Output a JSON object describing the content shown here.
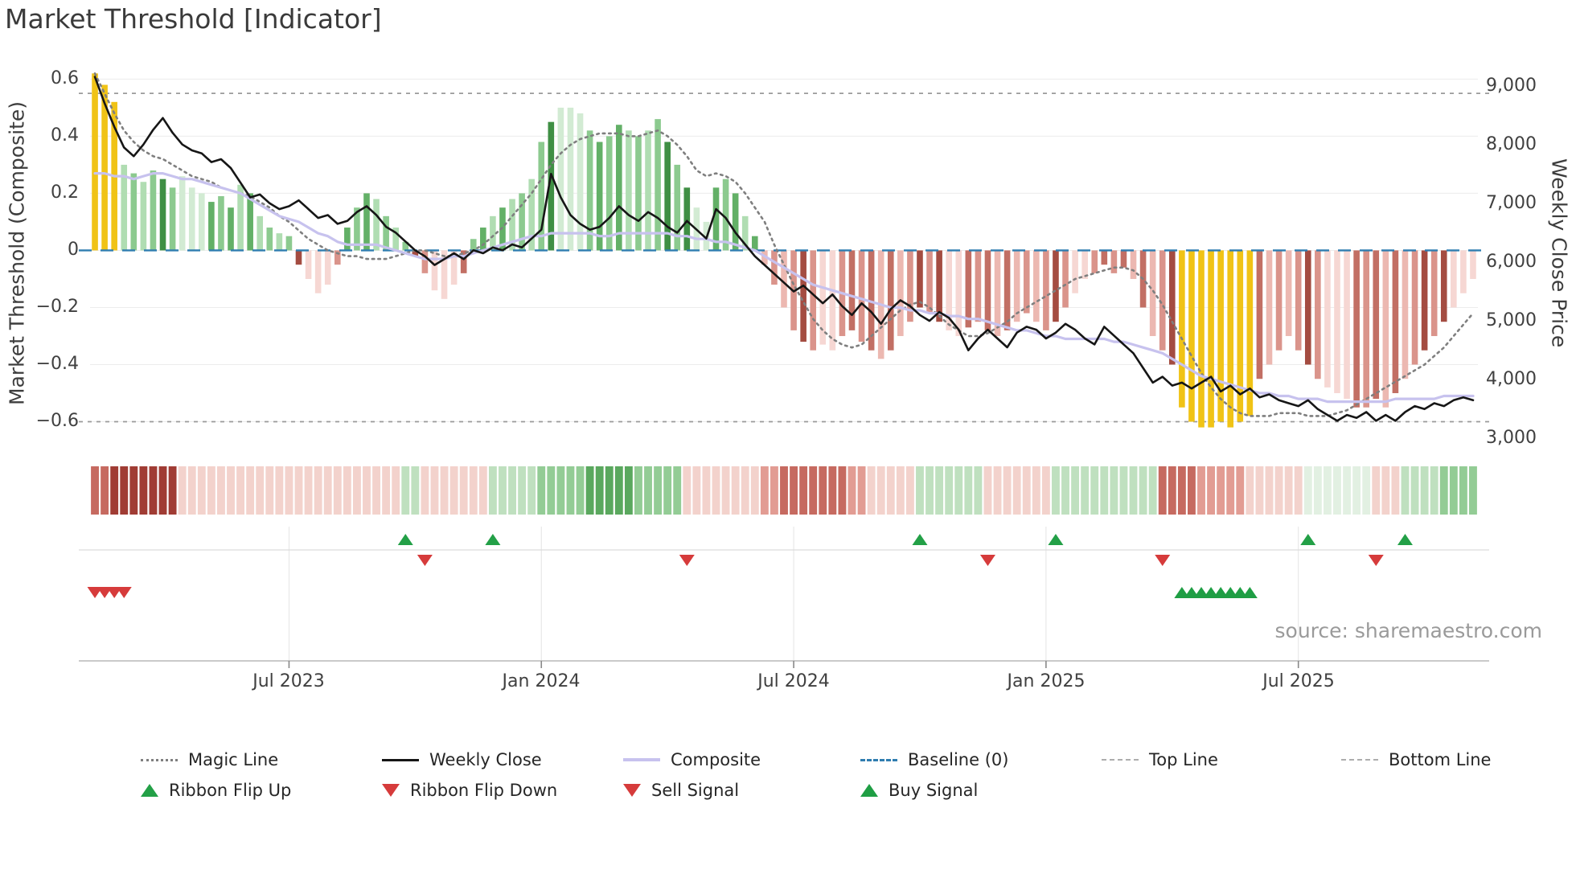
{
  "title": "Market Threshold [Indicator]",
  "source": "source: sharemaestro.com",
  "colors": {
    "highlight": "#f0c316",
    "bar_greens": [
      "#d2ebd3",
      "#b0ddb2",
      "#8cca8f",
      "#63b067",
      "#3f8f44"
    ],
    "bar_reds": [
      "#f6d7d3",
      "#ecb8b1",
      "#da948b",
      "#c26f64",
      "#a44c41"
    ],
    "weekly_close": "#161616",
    "composite": "#c7c2ee",
    "magic_line": "#7f7f7f",
    "baseline": "#2f7db0",
    "top_bottom_line": "#9a9a9a",
    "flip_up": "#23a047",
    "flip_down": "#d63b3b",
    "buy": "#1f9e44",
    "sell": "#d63b3b",
    "ribbon": {
      "dark_red": "#a03c34",
      "red": "#c66a60",
      "salmon": "#e29c93",
      "pink": "#f3d2cc",
      "pale_green": "#e2f0e2",
      "light_green": "#bfe0bf",
      "green": "#93cc95",
      "dark_green": "#5aa85e"
    }
  },
  "chart_data": {
    "type": "mixed",
    "n": 143,
    "start_date": "2023-02-13",
    "frequency": "weekly",
    "left_axis": {
      "label": "Market Threshold (Composite)",
      "range": [
        -0.7,
        0.68
      ],
      "ticks": [
        {
          "label": "0.6",
          "value": 0.6
        },
        {
          "label": "0.4",
          "value": 0.4
        },
        {
          "label": "0.2",
          "value": 0.2
        },
        {
          "label": "0",
          "value": 0
        },
        {
          "label": "−0.2",
          "value": -0.2
        },
        {
          "label": "−0.4",
          "value": -0.4
        },
        {
          "label": "−0.6",
          "value": -0.6
        }
      ]
    },
    "right_axis": {
      "label": "Weekly Close Price",
      "range": [
        2800,
        9500
      ],
      "ticks": [
        {
          "label": "9,000",
          "value": 9000
        },
        {
          "label": "8,000",
          "value": 8000
        },
        {
          "label": "7,000",
          "value": 7000
        },
        {
          "label": "6,000",
          "value": 6000
        },
        {
          "label": "5,000",
          "value": 5000
        },
        {
          "label": "4,000",
          "value": 4000
        },
        {
          "label": "3,000",
          "value": 3000
        }
      ]
    },
    "x_axis": {
      "ticks": [
        {
          "label": "Jul 2023",
          "index": 20
        },
        {
          "label": "Jan 2024",
          "index": 46
        },
        {
          "label": "Jul 2024",
          "index": 72
        },
        {
          "label": "Jan 2025",
          "index": 98
        },
        {
          "label": "Jul 2025",
          "index": 124
        }
      ]
    },
    "reference_lines": [
      {
        "name": "Top Line",
        "value": 0.55,
        "style": "band"
      },
      {
        "name": "Baseline (0)",
        "value": 0,
        "style": "baseline"
      },
      {
        "name": "Bottom Line",
        "value": -0.6,
        "style": "band"
      }
    ],
    "series": [
      {
        "name": "Threshold",
        "type": "bar",
        "axis": "left",
        "values": [
          0.62,
          0.58,
          0.52,
          0.3,
          0.27,
          0.24,
          0.28,
          0.25,
          0.22,
          0.26,
          0.22,
          0.2,
          0.17,
          0.19,
          0.15,
          0.23,
          0.2,
          0.12,
          0.08,
          0.06,
          0.05,
          -0.05,
          -0.1,
          -0.15,
          -0.12,
          -0.05,
          0.08,
          0.15,
          0.2,
          0.18,
          0.12,
          0.08,
          0.03,
          -0.02,
          -0.08,
          -0.14,
          -0.17,
          -0.12,
          -0.08,
          0.04,
          0.08,
          0.12,
          0.15,
          0.18,
          0.2,
          0.25,
          0.38,
          0.45,
          0.5,
          0.5,
          0.48,
          0.42,
          0.38,
          0.4,
          0.44,
          0.42,
          0.4,
          0.42,
          0.46,
          0.38,
          0.3,
          0.22,
          0.15,
          0.1,
          0.22,
          0.25,
          0.2,
          0.12,
          0.05,
          -0.05,
          -0.12,
          -0.2,
          -0.28,
          -0.32,
          -0.35,
          -0.33,
          -0.35,
          -0.3,
          -0.28,
          -0.32,
          -0.35,
          -0.38,
          -0.35,
          -0.3,
          -0.25,
          -0.2,
          -0.22,
          -0.25,
          -0.28,
          -0.3,
          -0.27,
          -0.25,
          -0.28,
          -0.3,
          -0.28,
          -0.25,
          -0.22,
          -0.25,
          -0.28,
          -0.25,
          -0.2,
          -0.15,
          -0.1,
          -0.08,
          -0.05,
          -0.08,
          -0.06,
          -0.1,
          -0.2,
          -0.3,
          -0.35,
          -0.4,
          -0.55,
          -0.6,
          -0.62,
          -0.62,
          -0.6,
          -0.62,
          -0.6,
          -0.58,
          -0.45,
          -0.4,
          -0.35,
          -0.3,
          -0.35,
          -0.4,
          -0.45,
          -0.48,
          -0.5,
          -0.52,
          -0.55,
          -0.55,
          -0.52,
          -0.55,
          -0.5,
          -0.45,
          -0.4,
          -0.35,
          -0.3,
          -0.25,
          -0.2,
          -0.15,
          -0.1
        ]
      },
      {
        "name": "Weekly Close",
        "type": "line",
        "axis": "right",
        "values": [
          9150,
          8700,
          8300,
          7950,
          7800,
          8000,
          8250,
          8450,
          8200,
          8000,
          7900,
          7850,
          7700,
          7750,
          7600,
          7350,
          7100,
          7150,
          7000,
          6900,
          6950,
          7050,
          6900,
          6750,
          6800,
          6650,
          6700,
          6850,
          6950,
          6800,
          6600,
          6500,
          6350,
          6200,
          6100,
          5950,
          6050,
          6150,
          6050,
          6200,
          6150,
          6250,
          6200,
          6300,
          6250,
          6400,
          6550,
          7500,
          7100,
          6800,
          6650,
          6550,
          6600,
          6750,
          6950,
          6800,
          6700,
          6850,
          6750,
          6600,
          6500,
          6700,
          6550,
          6400,
          6900,
          6750,
          6500,
          6300,
          6100,
          5950,
          5800,
          5650,
          5500,
          5600,
          5450,
          5300,
          5450,
          5250,
          5100,
          5300,
          5150,
          4950,
          5200,
          5350,
          5250,
          5100,
          5000,
          5150,
          5050,
          4850,
          4500,
          4700,
          4850,
          4700,
          4550,
          4800,
          4900,
          4850,
          4700,
          4800,
          4950,
          4850,
          4700,
          4600,
          4900,
          4750,
          4600,
          4450,
          4200,
          3950,
          4050,
          3900,
          3950,
          3850,
          3950,
          4050,
          3800,
          3900,
          3750,
          3850,
          3700,
          3750,
          3650,
          3600,
          3550,
          3650,
          3500,
          3400,
          3300,
          3400,
          3350,
          3450,
          3300,
          3400,
          3300,
          3450,
          3550,
          3500,
          3600,
          3550,
          3650,
          3700,
          3650
        ]
      },
      {
        "name": "Composite",
        "type": "line",
        "axis": "left",
        "values": [
          0.27,
          0.27,
          0.26,
          0.26,
          0.25,
          0.26,
          0.27,
          0.27,
          0.26,
          0.25,
          0.25,
          0.24,
          0.23,
          0.22,
          0.21,
          0.2,
          0.18,
          0.16,
          0.14,
          0.12,
          0.11,
          0.1,
          0.08,
          0.06,
          0.05,
          0.03,
          0.02,
          0.02,
          0.02,
          0.02,
          0.01,
          0.0,
          -0.01,
          -0.02,
          -0.03,
          -0.03,
          -0.03,
          -0.02,
          -0.02,
          -0.01,
          0.0,
          0.01,
          0.02,
          0.03,
          0.04,
          0.05,
          0.05,
          0.06,
          0.06,
          0.06,
          0.06,
          0.06,
          0.05,
          0.05,
          0.06,
          0.06,
          0.06,
          0.06,
          0.06,
          0.06,
          0.05,
          0.05,
          0.04,
          0.04,
          0.03,
          0.03,
          0.02,
          0.01,
          0.0,
          -0.02,
          -0.04,
          -0.06,
          -0.08,
          -0.1,
          -0.12,
          -0.13,
          -0.14,
          -0.15,
          -0.16,
          -0.17,
          -0.18,
          -0.19,
          -0.2,
          -0.2,
          -0.21,
          -0.21,
          -0.22,
          -0.22,
          -0.23,
          -0.23,
          -0.24,
          -0.24,
          -0.25,
          -0.26,
          -0.27,
          -0.28,
          -0.28,
          -0.29,
          -0.3,
          -0.3,
          -0.31,
          -0.31,
          -0.31,
          -0.31,
          -0.31,
          -0.32,
          -0.32,
          -0.33,
          -0.34,
          -0.35,
          -0.36,
          -0.38,
          -0.4,
          -0.42,
          -0.44,
          -0.45,
          -0.46,
          -0.47,
          -0.48,
          -0.49,
          -0.5,
          -0.5,
          -0.51,
          -0.51,
          -0.52,
          -0.52,
          -0.52,
          -0.53,
          -0.53,
          -0.53,
          -0.53,
          -0.53,
          -0.53,
          -0.53,
          -0.52,
          -0.52,
          -0.52,
          -0.52,
          -0.52,
          -0.51,
          -0.51,
          -0.51,
          -0.51
        ]
      },
      {
        "name": "Magic Line",
        "type": "line",
        "axis": "left",
        "values": [
          0.62,
          0.55,
          0.48,
          0.42,
          0.38,
          0.35,
          0.33,
          0.32,
          0.3,
          0.28,
          0.26,
          0.25,
          0.24,
          0.22,
          0.21,
          0.2,
          0.19,
          0.17,
          0.15,
          0.12,
          0.1,
          0.07,
          0.04,
          0.02,
          0.0,
          -0.01,
          -0.02,
          -0.02,
          -0.03,
          -0.03,
          -0.03,
          -0.02,
          -0.01,
          0.0,
          0.0,
          -0.01,
          -0.02,
          -0.02,
          -0.01,
          0.0,
          0.02,
          0.05,
          0.08,
          0.12,
          0.16,
          0.2,
          0.25,
          0.3,
          0.34,
          0.37,
          0.39,
          0.4,
          0.41,
          0.41,
          0.41,
          0.4,
          0.4,
          0.41,
          0.42,
          0.4,
          0.37,
          0.33,
          0.28,
          0.26,
          0.27,
          0.26,
          0.24,
          0.2,
          0.15,
          0.1,
          0.02,
          -0.05,
          -0.12,
          -0.18,
          -0.24,
          -0.28,
          -0.31,
          -0.33,
          -0.34,
          -0.33,
          -0.3,
          -0.27,
          -0.24,
          -0.21,
          -0.19,
          -0.18,
          -0.2,
          -0.23,
          -0.26,
          -0.28,
          -0.3,
          -0.3,
          -0.29,
          -0.27,
          -0.25,
          -0.22,
          -0.2,
          -0.18,
          -0.16,
          -0.14,
          -0.12,
          -0.1,
          -0.09,
          -0.08,
          -0.07,
          -0.06,
          -0.06,
          -0.07,
          -0.1,
          -0.14,
          -0.19,
          -0.25,
          -0.31,
          -0.37,
          -0.43,
          -0.48,
          -0.52,
          -0.55,
          -0.57,
          -0.58,
          -0.58,
          -0.58,
          -0.57,
          -0.57,
          -0.57,
          -0.58,
          -0.58,
          -0.58,
          -0.57,
          -0.56,
          -0.54,
          -0.52,
          -0.5,
          -0.48,
          -0.46,
          -0.44,
          -0.42,
          -0.4,
          -0.37,
          -0.34,
          -0.3,
          -0.26,
          -0.22
        ]
      }
    ],
    "highlight_bar_indices": [
      0,
      1,
      2,
      112,
      113,
      114,
      115,
      116,
      117,
      118,
      119
    ],
    "ribbon": [
      "red",
      "red",
      "dark_red",
      "dark_red",
      "dark_red",
      "dark_red",
      "dark_red",
      "dark_red",
      "dark_red",
      "pink",
      "pink",
      "pink",
      "pink",
      "pink",
      "pink",
      "pink",
      "pink",
      "pink",
      "pink",
      "pink",
      "pink",
      "pink",
      "pink",
      "pink",
      "pink",
      "pink",
      "pink",
      "pink",
      "pink",
      "pink",
      "pink",
      "pink",
      "light_green",
      "light_green",
      "pink",
      "pink",
      "pink",
      "pink",
      "pink",
      "pink",
      "pink",
      "light_green",
      "light_green",
      "light_green",
      "light_green",
      "light_green",
      "green",
      "green",
      "green",
      "green",
      "green",
      "dark_green",
      "dark_green",
      "dark_green",
      "dark_green",
      "dark_green",
      "green",
      "green",
      "green",
      "green",
      "green",
      "pink",
      "pink",
      "pink",
      "pink",
      "pink",
      "pink",
      "pink",
      "pink",
      "salmon",
      "salmon",
      "red",
      "red",
      "red",
      "red",
      "red",
      "red",
      "red",
      "salmon",
      "salmon",
      "pink",
      "pink",
      "pink",
      "pink",
      "pink",
      "light_green",
      "light_green",
      "light_green",
      "light_green",
      "light_green",
      "light_green",
      "light_green",
      "pink",
      "pink",
      "pink",
      "pink",
      "pink",
      "pink",
      "pink",
      "light_green",
      "light_green",
      "light_green",
      "light_green",
      "light_green",
      "light_green",
      "light_green",
      "light_green",
      "light_green",
      "light_green",
      "light_green",
      "red",
      "red",
      "red",
      "red",
      "salmon",
      "salmon",
      "salmon",
      "salmon",
      "salmon",
      "pink",
      "pink",
      "pink",
      "pink",
      "pink",
      "pink",
      "pale_green",
      "pale_green",
      "pale_green",
      "pale_green",
      "pale_green",
      "pale_green",
      "pale_green",
      "pink",
      "pink",
      "pink",
      "light_green",
      "light_green",
      "light_green",
      "light_green",
      "green",
      "green",
      "green",
      "green"
    ],
    "markers": {
      "ribbon_flip_up": [
        32,
        41,
        85,
        99,
        125,
        135
      ],
      "ribbon_flip_down": [
        34,
        61,
        92,
        110,
        132
      ],
      "sell_signal": [
        0,
        1,
        2,
        3
      ],
      "buy_signal": [
        112,
        113,
        114,
        115,
        116,
        117,
        118,
        119
      ]
    }
  },
  "legend": {
    "items": [
      {
        "label": "Magic Line"
      },
      {
        "label": "Weekly Close"
      },
      {
        "label": "Composite"
      },
      {
        "label": "Baseline (0)"
      },
      {
        "label": "Top Line"
      },
      {
        "label": "Bottom Line"
      },
      {
        "label": "Ribbon Flip Up"
      },
      {
        "label": "Ribbon Flip Down"
      },
      {
        "label": "Sell Signal"
      },
      {
        "label": "Buy Signal"
      }
    ]
  }
}
